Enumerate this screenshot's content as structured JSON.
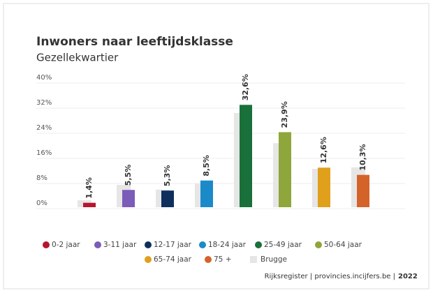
{
  "chart_data": {
    "type": "bar",
    "title": "Inwoners naar leeftijdsklasse",
    "subtitle": "Gezellekwartier",
    "categories": [
      "0-2 jaar",
      "3-11 jaar",
      "12-17 jaar",
      "18-24 jaar",
      "25-49 jaar",
      "50-64 jaar",
      "65-74 jaar",
      "75 +"
    ],
    "series": [
      {
        "values": [
          1.4,
          5.5,
          5.3,
          8.5,
          32.6,
          23.9,
          12.6,
          10.3
        ],
        "value_labels": [
          "1,4%",
          "5,5%",
          "5,3%",
          "8,5%",
          "32,6%",
          "23,9%",
          "12,6%",
          "10,3%"
        ],
        "colors": [
          "#b5172e",
          "#7b5cb8",
          "#0e2f5e",
          "#1b8ac9",
          "#19703a",
          "#8ea63a",
          "#e0a01c",
          "#d4632a"
        ]
      },
      {
        "name": "Brugge",
        "color": "#e6e6e6",
        "values": [
          2.2,
          7.1,
          5.6,
          7.5,
          30,
          20.4,
          12.2,
          12.7
        ]
      }
    ],
    "ylim": [
      0,
      40
    ],
    "yticks": [
      {
        "value": 0,
        "label": "0%"
      },
      {
        "value": 8,
        "label": "8%"
      },
      {
        "value": 16,
        "label": "16%"
      },
      {
        "value": 24,
        "label": "24%"
      },
      {
        "value": 32,
        "label": "32%"
      },
      {
        "value": 40,
        "label": "40%"
      }
    ],
    "grid": true,
    "source": "Rijksregister | provincies.incijfers.be |",
    "year": "2022"
  }
}
